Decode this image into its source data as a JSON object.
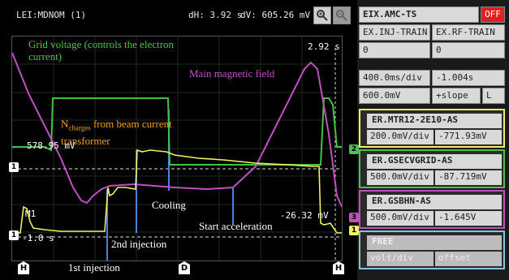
{
  "scope": {
    "header": {
      "source": "LEI:MDNOM (1)",
      "dh": "dH: 3.92 s",
      "dv": "dV: 605.26 mV"
    },
    "zoom_in_icon": "magnify-plus-icon",
    "zoom_out_icon": "magnify-minus-icon",
    "time_readout": "2.92 s",
    "level_left": "578.95 mV",
    "level_right": "-26.32 mV",
    "m1_label": "M1",
    "time_left": "-1.0 s",
    "bottom_marker_h": "H",
    "bottom_marker_d": "D",
    "left_marker_1": "1",
    "right_markers": [
      "2",
      "3",
      "1"
    ],
    "colors": {
      "green": "#4fc04f",
      "magenta": "#c04fc0",
      "yellow": "#f0f060",
      "blue": "#5a8ad8",
      "orange": "#f0a020"
    }
  },
  "annotations": {
    "grid_voltage": "Grid voltage (controls the electron current)",
    "main_field": "Main magnetic field",
    "ncharges_prefix": "N",
    "ncharges_sub": "charges",
    "ncharges_suffix": " from beam current transformer",
    "cooling": "Cooling",
    "start_accel": "Start acceleration",
    "second_injection": "2nd injection",
    "first_injection": "1st injection"
  },
  "panel": {
    "title": "EIX.AMC-TS",
    "off_label": "OFF",
    "trig_a": "EX.INJ-TRAIN",
    "trig_b": "EX.RF-TRAIN",
    "trig_a_val": "0",
    "trig_b_val": "0",
    "timebase": "400.0ms/div",
    "delay": "-1.004s",
    "trig_level": "600.0mV",
    "slope": "+slope",
    "slope_mode": "L",
    "channels": [
      {
        "name": "ER.MTR12-2E10-AS",
        "scale": "200.0mV/div",
        "offset": "-771.93mV",
        "color": "#f0f060"
      },
      {
        "name": "ER.GSECVGRID-AS",
        "scale": "500.0mV/div",
        "offset": "-87.719mV",
        "color": "#4fc04f"
      },
      {
        "name": "ER.GSBHN-AS",
        "scale": "500.0mV/div",
        "offset": "-1.645V",
        "color": "#c04fc0"
      },
      {
        "name": "FREE",
        "scale": "volt/div",
        "offset": "offset",
        "color": "#7ec8d8"
      }
    ]
  }
}
